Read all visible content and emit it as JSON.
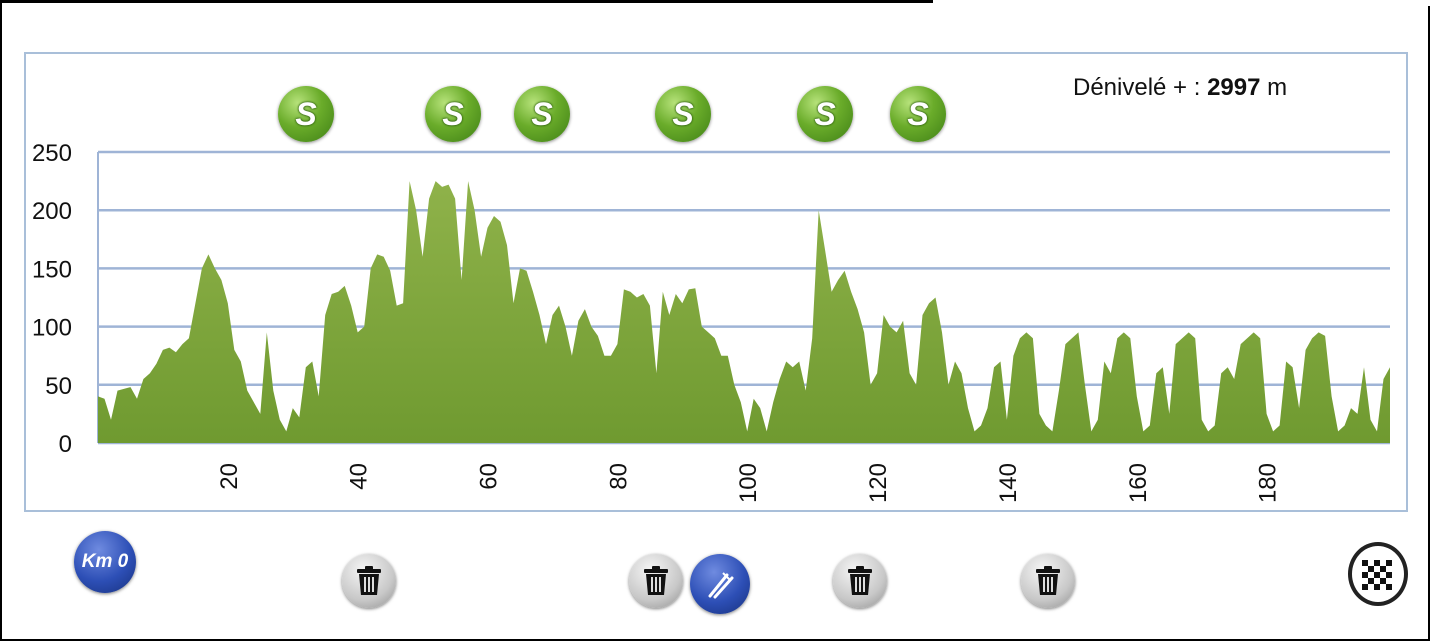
{
  "elevation_gain": {
    "label": "Dénivelé + :",
    "value": "2997",
    "unit": "m"
  },
  "sprint_markers": [
    {
      "label": "S"
    },
    {
      "label": "S"
    },
    {
      "label": "S"
    },
    {
      "label": "S"
    },
    {
      "label": "S"
    },
    {
      "label": "S"
    }
  ],
  "bottom_icons": {
    "start_label": "Km 0",
    "icon_names": [
      "km0-start-icon",
      "trash-icon",
      "trash-icon",
      "food-icon",
      "trash-icon",
      "trash-icon",
      "finish-flag-icon"
    ]
  },
  "colors": {
    "area_fill": "#8fb24a",
    "area_fill_dark": "#6f9a30",
    "gridline": "#9fb4d6",
    "sprint_green": "#5aa128",
    "icon_blue": "#2d4fb6",
    "panel_border": "#a9bfd9"
  },
  "chart_data": {
    "type": "area",
    "title": "",
    "xlabel": "",
    "ylabel": "",
    "xlim": [
      0,
      199
    ],
    "ylim": [
      0,
      250
    ],
    "grid": true,
    "y_ticks": [
      0,
      50,
      100,
      150,
      200,
      250
    ],
    "x_ticks": [
      20,
      40,
      60,
      80,
      100,
      120,
      140,
      160,
      180
    ],
    "x": [
      0,
      1,
      2,
      3,
      5,
      6,
      7,
      8,
      9,
      10,
      11,
      12,
      13,
      14,
      15,
      16,
      17,
      18,
      19,
      20,
      21,
      22,
      23,
      24,
      25,
      26,
      27,
      28,
      29,
      30,
      31,
      32,
      33,
      34,
      35,
      36,
      37,
      38,
      39,
      40,
      41,
      42,
      43,
      44,
      45,
      46,
      47,
      48,
      49,
      50,
      51,
      52,
      53,
      54,
      55,
      56,
      57,
      58,
      59,
      60,
      61,
      62,
      63,
      64,
      65,
      66,
      67,
      68,
      69,
      70,
      71,
      72,
      73,
      74,
      75,
      76,
      77,
      78,
      79,
      80,
      81,
      82,
      83,
      84,
      85,
      86,
      87,
      88,
      89,
      90,
      91,
      92,
      93,
      94,
      95,
      96,
      97,
      98,
      99,
      100,
      101,
      102,
      103,
      104,
      105,
      106,
      107,
      108,
      109,
      110,
      111,
      112,
      113,
      114,
      115,
      116,
      117,
      118,
      119,
      120,
      121,
      122,
      123,
      124,
      125,
      126,
      127,
      128,
      129,
      130,
      131,
      132,
      133,
      134,
      135,
      136,
      137,
      138,
      139,
      140,
      141,
      142,
      143,
      144,
      145,
      146,
      147,
      148,
      149,
      150,
      151,
      152,
      153,
      154,
      155,
      156,
      157,
      158,
      159,
      160,
      161,
      162,
      163,
      164,
      165,
      166,
      167,
      168,
      169,
      170,
      171,
      172,
      173,
      174,
      175,
      176,
      177,
      178,
      179,
      180,
      181,
      182,
      183,
      184,
      185,
      186,
      187,
      188,
      189,
      190,
      191,
      192,
      193,
      194,
      195,
      196,
      197,
      198,
      199
    ],
    "values": [
      40,
      38,
      20,
      45,
      48,
      38,
      55,
      60,
      68,
      80,
      82,
      78,
      85,
      90,
      120,
      150,
      162,
      150,
      140,
      120,
      80,
      70,
      45,
      35,
      25,
      95,
      45,
      20,
      10,
      30,
      22,
      65,
      70,
      40,
      110,
      128,
      130,
      135,
      118,
      95,
      100,
      150,
      162,
      160,
      148,
      118,
      120,
      225,
      200,
      160,
      210,
      225,
      220,
      222,
      210,
      140,
      225,
      200,
      160,
      185,
      195,
      190,
      170,
      120,
      150,
      148,
      130,
      110,
      85,
      110,
      118,
      100,
      75,
      105,
      115,
      100,
      92,
      75,
      75,
      85,
      132,
      130,
      125,
      128,
      118,
      60,
      130,
      110,
      128,
      120,
      132,
      133,
      100,
      95,
      90,
      75,
      75,
      50,
      35,
      10,
      38,
      30,
      10,
      35,
      55,
      70,
      65,
      70,
      45,
      90,
      200,
      165,
      130,
      140,
      148,
      130,
      115,
      95,
      50,
      60,
      110,
      100,
      95,
      105,
      60,
      50,
      110,
      120,
      125,
      95,
      50,
      70,
      60,
      30,
      10,
      15,
      30,
      65,
      70,
      20,
      75,
      90,
      95,
      90,
      25,
      15,
      10,
      45,
      85,
      90,
      95,
      50,
      10,
      20,
      70,
      60,
      90,
      95,
      90,
      40,
      10,
      15,
      60,
      65,
      25,
      85,
      90,
      95,
      90,
      20,
      10,
      15,
      60,
      65,
      55,
      85,
      90,
      95,
      90,
      25,
      10,
      15,
      70,
      65,
      30,
      80,
      90,
      95,
      92,
      40,
      10,
      15,
      30,
      25,
      65,
      20,
      10,
      55,
      65
    ]
  }
}
